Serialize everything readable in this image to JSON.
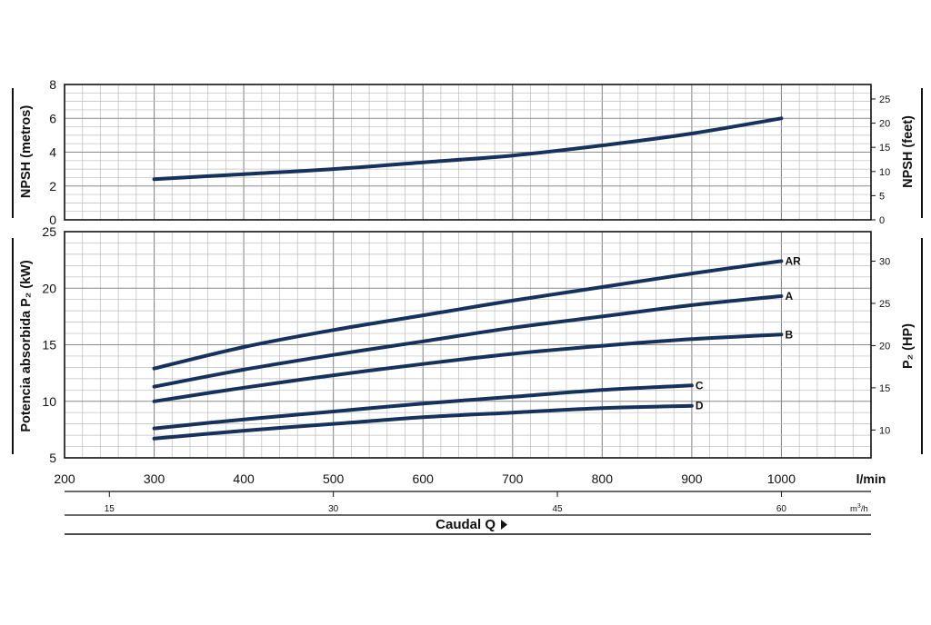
{
  "chart_data": [
    {
      "type": "line",
      "panel": "npsh",
      "ylabel": "NPSH  (metros)",
      "y2label": "NPSH  (feet)",
      "ylim": [
        0,
        8
      ],
      "y2lim": [
        0,
        28
      ],
      "yticks": [
        "0",
        "2",
        "4",
        "6",
        "8"
      ],
      "y2ticks": [
        "0",
        "5",
        "10",
        "15",
        "20",
        "25"
      ],
      "grid": true,
      "series": [
        {
          "x": [
            300,
            400,
            500,
            600,
            700,
            800,
            900,
            1000
          ],
          "values": [
            2.4,
            2.7,
            3.0,
            3.4,
            3.8,
            4.4,
            5.1,
            6.0
          ]
        }
      ]
    },
    {
      "type": "line",
      "panel": "power",
      "ylabel": "Potencia absorbida  P₂  (kW)",
      "y2label": "P₂  (HP)",
      "ylim": [
        5,
        25
      ],
      "y2lim": [
        6.7,
        33.5
      ],
      "yticks": [
        "5",
        "10",
        "15",
        "20",
        "25"
      ],
      "y2ticks": [
        "10",
        "15",
        "20",
        "25",
        "30"
      ],
      "grid": true,
      "series": [
        {
          "name": "AR",
          "x": [
            300,
            400,
            500,
            600,
            700,
            800,
            900,
            1000
          ],
          "values": [
            12.9,
            14.8,
            16.3,
            17.6,
            18.9,
            20.1,
            21.3,
            22.4
          ]
        },
        {
          "name": "A",
          "x": [
            300,
            400,
            500,
            600,
            700,
            800,
            900,
            1000
          ],
          "values": [
            11.3,
            12.8,
            14.1,
            15.3,
            16.5,
            17.5,
            18.5,
            19.3
          ]
        },
        {
          "name": "B",
          "x": [
            300,
            400,
            500,
            600,
            700,
            800,
            900,
            1000
          ],
          "values": [
            10.0,
            11.2,
            12.3,
            13.3,
            14.2,
            14.9,
            15.5,
            15.9
          ]
        },
        {
          "name": "C",
          "x": [
            300,
            400,
            500,
            600,
            700,
            800,
            900
          ],
          "values": [
            7.6,
            8.4,
            9.1,
            9.8,
            10.4,
            11.0,
            11.4
          ]
        },
        {
          "name": "D",
          "x": [
            300,
            400,
            500,
            600,
            700,
            800,
            900
          ],
          "values": [
            6.7,
            7.4,
            8.0,
            8.6,
            9.0,
            9.4,
            9.6
          ]
        }
      ]
    }
  ],
  "x_axis": {
    "xlim": [
      200,
      1100
    ],
    "ticks": [
      "200",
      "300",
      "400",
      "500",
      "600",
      "700",
      "800",
      "900",
      "1000"
    ],
    "unit": "l/min"
  },
  "x2_axis": {
    "ticks": [
      {
        "label": "15",
        "value": 15
      },
      {
        "label": "30",
        "value": 30
      },
      {
        "label": "45",
        "value": 45
      },
      {
        "label": "60",
        "value": 60
      }
    ],
    "unit_base": "m",
    "unit_sup": "3",
    "unit_tail": "/h"
  },
  "xlabel": "Caudal  Q",
  "colors": {
    "line": "#16325c",
    "grid": "#bcbcbc",
    "frame": "#111111"
  },
  "icons": {
    "xlabel_arrow": "triangle-right-icon"
  }
}
